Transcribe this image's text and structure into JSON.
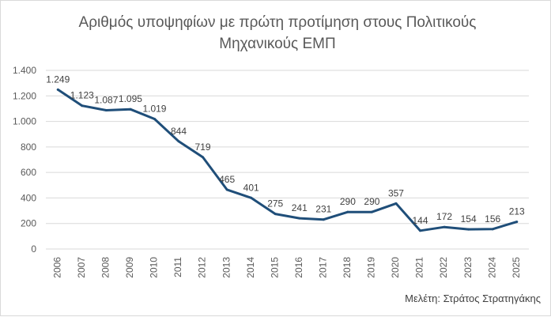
{
  "chart_data": {
    "type": "line",
    "title": "Αριθμός υποψηφίων με πρώτη προτίμηση στους Πολιτικούς\nΜηχανικούς ΕΜΠ",
    "xlabel": "",
    "ylabel": "",
    "categories": [
      "2006",
      "2007",
      "2008",
      "2009",
      "2010",
      "2011",
      "2012",
      "2013",
      "2014",
      "2015",
      "2016",
      "2017",
      "2018",
      "2019",
      "2020",
      "2021",
      "2022",
      "2023",
      "2024",
      "2025"
    ],
    "series": [
      {
        "values": [
          1249,
          1123,
          1087,
          1095,
          1019,
          844,
          719,
          465,
          401,
          275,
          241,
          231,
          290,
          290,
          357,
          144,
          172,
          154,
          156,
          213
        ],
        "labels": [
          "1.249",
          "1.123",
          "1.087",
          "1.095",
          "1.019",
          "844",
          "719",
          "465",
          "401",
          "275",
          "241",
          "231",
          "290",
          "290",
          "357",
          "144",
          "172",
          "154",
          "156",
          "213"
        ]
      }
    ],
    "ylim": [
      0,
      1400
    ],
    "yticks": [
      0,
      200,
      400,
      600,
      800,
      1000,
      1200,
      1400
    ],
    "ytick_labels": [
      "0",
      "200",
      "400",
      "600",
      "800",
      "1.000",
      "1.200",
      "1.400"
    ],
    "grid": true,
    "legend": "none",
    "line_color": "#1f4e79",
    "grid_color": "#d9d9d9"
  },
  "footer": "Μελέτη: Στράτος Στρατηγάκης"
}
